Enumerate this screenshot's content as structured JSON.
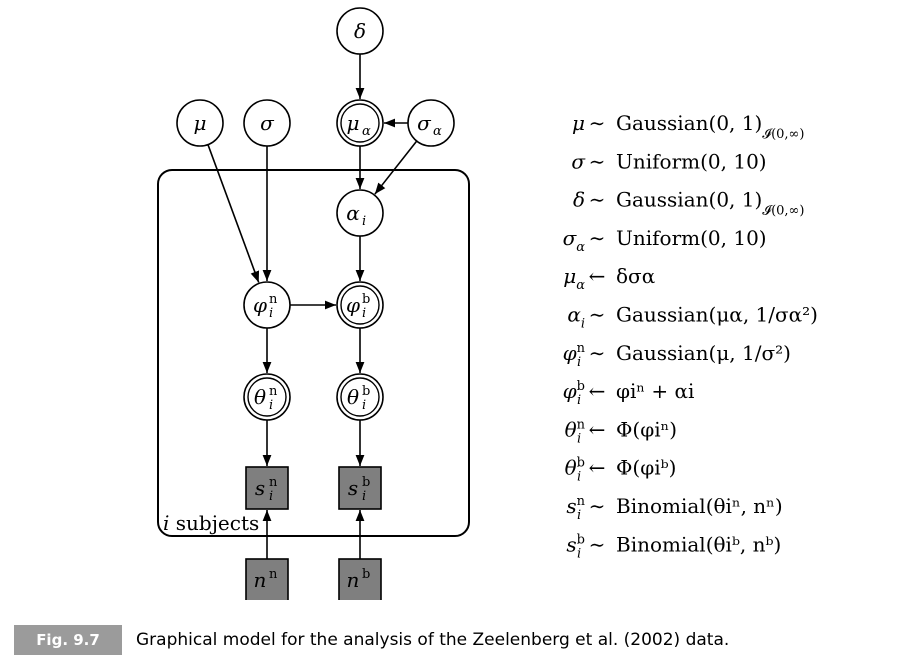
{
  "diagram": {
    "nodes": {
      "delta": {
        "symbol": "δ",
        "kind": "stochastic"
      },
      "mu": {
        "symbol": "μ",
        "kind": "stochastic"
      },
      "sigma": {
        "symbol": "σ",
        "kind": "stochastic"
      },
      "mu_alpha": {
        "symbol": "μ",
        "sub": "α",
        "kind": "deterministic"
      },
      "sigma_alpha": {
        "symbol": "σ",
        "sub": "α",
        "kind": "stochastic"
      },
      "alpha_i": {
        "symbol": "α",
        "sub": "i",
        "kind": "stochastic"
      },
      "phi_n": {
        "symbol": "φ",
        "sup": "n",
        "sub": "i",
        "kind": "stochastic"
      },
      "phi_b": {
        "symbol": "φ",
        "sup": "b",
        "sub": "i",
        "kind": "deterministic"
      },
      "theta_n": {
        "symbol": "θ",
        "sup": "n",
        "sub": "i",
        "kind": "deterministic"
      },
      "theta_b": {
        "symbol": "θ",
        "sup": "b",
        "sub": "i",
        "kind": "deterministic"
      },
      "s_n": {
        "symbol": "s",
        "sup": "n",
        "sub": "i",
        "kind": "observed"
      },
      "s_b": {
        "symbol": "s",
        "sup": "b",
        "sub": "i",
        "kind": "observed"
      },
      "n_n": {
        "symbol": "n",
        "sup": "n",
        "kind": "observed"
      },
      "n_b": {
        "symbol": "n",
        "sup": "b",
        "kind": "observed"
      }
    },
    "edges": [
      [
        "delta",
        "mu_alpha"
      ],
      [
        "sigma_alpha",
        "mu_alpha"
      ],
      [
        "sigma_alpha",
        "alpha_i"
      ],
      [
        "mu_alpha",
        "alpha_i"
      ],
      [
        "mu",
        "phi_n"
      ],
      [
        "sigma",
        "phi_n"
      ],
      [
        "alpha_i",
        "phi_b"
      ],
      [
        "phi_n",
        "phi_b"
      ],
      [
        "phi_n",
        "theta_n"
      ],
      [
        "phi_b",
        "theta_b"
      ],
      [
        "theta_n",
        "s_n"
      ],
      [
        "theta_b",
        "s_b"
      ],
      [
        "n_n",
        "s_n"
      ],
      [
        "n_b",
        "s_b"
      ]
    ],
    "plate_label": {
      "var": "i",
      "text": " subjects"
    },
    "colors": {
      "observed_fill": "#7f7f7f",
      "line": "#000000",
      "caption_bar": "#9b9b9b"
    }
  },
  "equations": [
    {
      "lhs": "μ",
      "op": "∼",
      "rhs": "Gaussian(0, 1)",
      "rhs_sub": "𝓘(0,∞)"
    },
    {
      "lhs": "σ",
      "op": "∼",
      "rhs": "Uniform(0, 10)"
    },
    {
      "lhs": "δ",
      "op": "∼",
      "rhs": "Gaussian(0, 1)",
      "rhs_sub": "𝓘(0,∞)"
    },
    {
      "lhs": "σ",
      "lhs_sub": "α",
      "op": "∼",
      "rhs": "Uniform(0, 10)"
    },
    {
      "lhs": "μ",
      "lhs_sub": "α",
      "op": "←",
      "rhs": "δσα"
    },
    {
      "lhs": "α",
      "lhs_sub": "i",
      "op": "∼",
      "rhs": "Gaussian(μα, 1/σα²)"
    },
    {
      "lhs": "φ",
      "lhs_sup": "n",
      "lhs_sub": "i",
      "op": "∼",
      "rhs": "Gaussian(μ, 1/σ²)"
    },
    {
      "lhs": "φ",
      "lhs_sup": "b",
      "lhs_sub": "i",
      "op": "←",
      "rhs": "φiⁿ + αi"
    },
    {
      "lhs": "θ",
      "lhs_sup": "n",
      "lhs_sub": "i",
      "op": "←",
      "rhs": "Φ(φiⁿ)"
    },
    {
      "lhs": "θ",
      "lhs_sup": "b",
      "lhs_sub": "i",
      "op": "←",
      "rhs": "Φ(φiᵇ)"
    },
    {
      "lhs": "s",
      "lhs_sup": "n",
      "lhs_sub": "i",
      "op": "∼",
      "rhs": "Binomial(θiⁿ, nⁿ)"
    },
    {
      "lhs": "s",
      "lhs_sup": "b",
      "lhs_sub": "i",
      "op": "∼",
      "rhs": "Binomial(θiᵇ, nᵇ)"
    }
  ],
  "caption": {
    "tag": "Fig. 9.7",
    "text": "Graphical model for the analysis of the Zeelenberg et al. (2002) data."
  }
}
